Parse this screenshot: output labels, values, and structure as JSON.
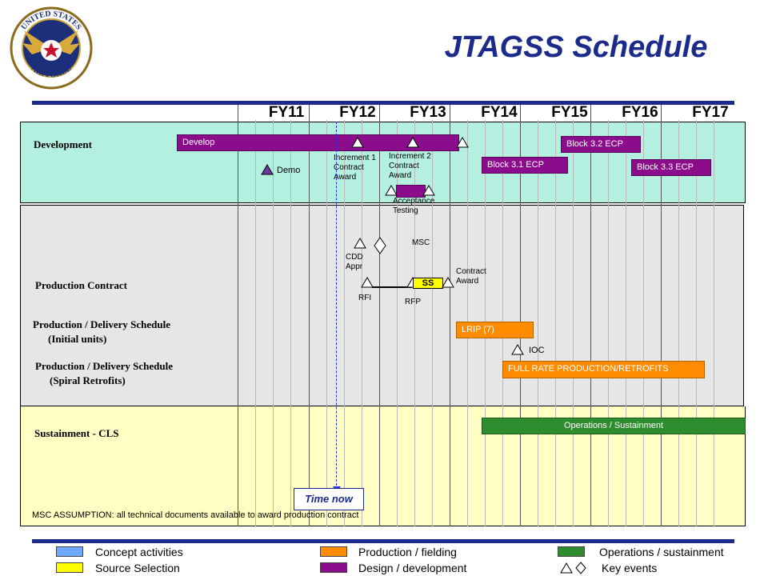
{
  "title": "JTAGSS Schedule",
  "seal": {
    "name": "United States Air Force seal",
    "text_top": "UNITED STATES",
    "text_bottom": "AIR FORCE"
  },
  "fiscal_years": [
    "FY11",
    "FY12",
    "FY13",
    "FY14",
    "FY15",
    "FY16",
    "FY17"
  ],
  "rows": {
    "development": "Development",
    "production_contract": "Production Contract",
    "prod_initial_1": "Production / Delivery Schedule",
    "prod_initial_2": "(Initial units)",
    "prod_spiral_1": "Production / Delivery Schedule",
    "prod_spiral_2": "(Spiral Retrofits)",
    "sustainment": "Sustainment - CLS"
  },
  "bars": {
    "develop": "Develop",
    "block31": "Block 3.1 ECP",
    "block32": "Block 3.2 ECP",
    "block33": "Block 3.3 ECP",
    "ss": "SS",
    "lrip": "LRIP (7)",
    "full_rate": "FULL RATE PRODUCTION/RETROFITS",
    "ops": "Operations / Sustainment"
  },
  "milestones": {
    "demo": "Demo",
    "inc1_1": "Increment 1",
    "inc1_2": "Contract",
    "inc1_3": "Award",
    "inc2_1": "Increment 2",
    "inc2_2": "Contract",
    "inc2_3": "Award",
    "accept_1": "Acceptance",
    "accept_2": "Testing",
    "msc": "MSC",
    "cdd_1": "CDD",
    "cdd_2": "Appr",
    "rfi": "RFI",
    "rfp": "RFP",
    "contract_1": "Contract",
    "contract_2": "Award",
    "ioc": "IOC"
  },
  "time_now": "Time now",
  "note": "MSC ASSUMPTION:   all technical documents available to award production contract",
  "legend": {
    "concept": "Concept activities",
    "source": "Source Selection",
    "production": "Production / fielding",
    "design": "Design / development",
    "ops": "Operations / sustainment",
    "key_events": "Key events"
  },
  "colors": {
    "title": "#1c2a8c",
    "development_band": "#b3f0df",
    "production_band": "#e6e6e6",
    "sustainment_band": "#ffffc4",
    "concept": "#6fa8ff",
    "source": "#ffff00",
    "production": "#ff8c00",
    "design": "#8b0d8b",
    "ops": "#2e8b2e"
  }
}
